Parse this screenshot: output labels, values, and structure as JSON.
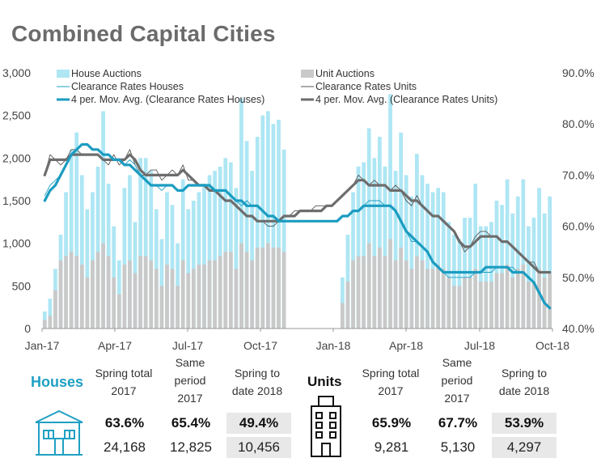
{
  "title": "Combined Capital Cities",
  "chart_data": {
    "type": "bar+line",
    "x_tick_labels": [
      "Jan-17",
      "Apr-17",
      "Jul-17",
      "Oct-17",
      "Jan-18",
      "Apr-18",
      "Jul-18",
      "Oct-18"
    ],
    "y_left": {
      "ticks": [
        "0",
        "500",
        "1,000",
        "1,500",
        "2,000",
        "2,500",
        "3,000"
      ],
      "range": [
        0,
        3000
      ]
    },
    "y_right": {
      "ticks": [
        "40.0%",
        "50.0%",
        "60.0%",
        "70.0%",
        "80.0%",
        "90.0%"
      ],
      "range": [
        40,
        90
      ]
    },
    "legend": {
      "house_auctions": "House Auctions",
      "clearance_houses": "Clearance Rates Houses",
      "mavg_houses": "4 per. Mov. Avg. (Clearance Rates Houses)",
      "unit_auctions": "Unit Auctions",
      "clearance_units": "Clearance Rates Units",
      "mavg_units": "4 per. Mov. Avg. (Clearance Rates Units)"
    },
    "colors": {
      "house_auctions": "#aee6f4",
      "clearance_houses": "#1fa0c3",
      "mavg_houses": "#1b9cc1",
      "unit_auctions": "#c9c9c9",
      "clearance_units": "#555555",
      "mavg_units": "#6d6d6d"
    },
    "house_auctions": [
      200,
      350,
      700,
      1100,
      1600,
      2100,
      2300,
      1800,
      1400,
      1600,
      1900,
      2550,
      1700,
      1200,
      800,
      1650,
      1800,
      1250,
      2000,
      2000,
      1850,
      1400,
      1050,
      1600,
      1450,
      1000,
      1750,
      1400,
      1500,
      1600,
      1700,
      1800,
      1850,
      1900,
      2000,
      1950,
      1650,
      2700,
      2200,
      1850,
      2250,
      2500,
      2550,
      2400,
      2450,
      2100,
      0,
      0,
      0,
      0,
      0,
      0,
      0,
      0,
      0,
      0,
      600,
      1100,
      1600,
      1900,
      1950,
      2350,
      2000,
      2250,
      1900,
      2750,
      1850,
      2300,
      1800,
      1550,
      2050,
      1800,
      1700,
      1600,
      1650,
      1600,
      1250,
      1100,
      1050,
      1300,
      1300,
      1700,
      1200,
      1200,
      1250,
      1500,
      1450,
      1750,
      1350,
      1550,
      1750,
      1200,
      1300,
      1650,
      1350,
      1550
    ],
    "unit_auctions": [
      100,
      150,
      450,
      800,
      850,
      900,
      850,
      750,
      600,
      800,
      900,
      1000,
      850,
      600,
      400,
      750,
      800,
      650,
      850,
      850,
      800,
      700,
      500,
      750,
      700,
      500,
      800,
      650,
      700,
      750,
      750,
      800,
      800,
      850,
      900,
      900,
      700,
      1000,
      900,
      800,
      950,
      950,
      1000,
      950,
      950,
      900,
      0,
      0,
      0,
      0,
      0,
      0,
      0,
      0,
      0,
      0,
      300,
      550,
      800,
      850,
      850,
      1000,
      850,
      950,
      850,
      1050,
      800,
      950,
      800,
      700,
      850,
      800,
      700,
      700,
      750,
      700,
      600,
      500,
      500,
      600,
      600,
      700,
      550,
      550,
      550,
      650,
      650,
      750,
      600,
      700,
      750,
      550,
      550,
      700,
      600,
      650
    ],
    "clearance_houses_pct": [
      66,
      68,
      69,
      70,
      72,
      74,
      75,
      76,
      76,
      75,
      75,
      74,
      74,
      73,
      73,
      72,
      73,
      72,
      70,
      69,
      68,
      68,
      67,
      68,
      68,
      67,
      67,
      68,
      68,
      68,
      68,
      68,
      67,
      67,
      67,
      66,
      65,
      64,
      65,
      64,
      64,
      63,
      62,
      62,
      61,
      61,
      61,
      61,
      61,
      61,
      61,
      61,
      61,
      61,
      61,
      61,
      62,
      62,
      63,
      63,
      64,
      65,
      65,
      65,
      64,
      64,
      63,
      61,
      59,
      57,
      57,
      56,
      55,
      53,
      52,
      51,
      50,
      50,
      50,
      50,
      50,
      51,
      51,
      51,
      51,
      52,
      52,
      52,
      52,
      51,
      51,
      50,
      49,
      47,
      45,
      44
    ],
    "mavg_houses_pct": [
      65,
      67,
      68,
      70,
      72,
      74,
      75,
      76,
      76,
      75,
      75,
      74,
      74,
      73,
      73,
      72,
      72,
      71,
      70,
      69,
      68,
      68,
      68,
      68,
      68,
      67,
      67,
      68,
      68,
      68,
      68,
      68,
      67,
      67,
      67,
      66,
      65,
      65,
      64,
      64,
      64,
      63,
      62,
      62,
      61,
      61,
      61,
      61,
      61,
      61,
      61,
      61,
      61,
      61,
      61,
      61,
      62,
      62,
      63,
      63,
      64,
      64,
      64,
      64,
      64,
      64,
      63,
      61,
      59,
      58,
      57,
      56,
      55,
      53,
      52,
      51,
      51,
      51,
      51,
      51,
      51,
      51,
      51,
      52,
      52,
      52,
      52,
      52,
      51,
      51,
      51,
      50,
      49,
      47,
      45,
      44
    ],
    "clearance_units_pct": [
      70,
      74,
      73,
      72,
      73,
      75,
      75,
      74,
      74,
      74,
      74,
      73,
      72,
      74,
      72,
      73,
      75,
      72,
      70,
      70,
      71,
      71,
      69,
      70,
      71,
      70,
      72,
      69,
      69,
      68,
      68,
      67,
      67,
      66,
      65,
      65,
      64,
      63,
      62,
      62,
      61,
      61,
      60,
      60,
      61,
      62,
      62,
      63,
      63,
      63,
      63,
      64,
      64,
      64,
      64,
      65,
      66,
      67,
      68,
      70,
      69,
      68,
      69,
      68,
      68,
      67,
      68,
      67,
      65,
      64,
      66,
      64,
      63,
      62,
      62,
      61,
      60,
      59,
      57,
      55,
      56,
      58,
      59,
      59,
      58,
      58,
      57,
      57,
      56,
      55,
      54,
      53,
      53,
      51,
      51,
      51
    ],
    "mavg_units_pct": [
      70,
      73,
      73,
      73,
      73,
      74,
      74,
      74,
      74,
      74,
      74,
      73,
      73,
      73,
      73,
      73,
      74,
      73,
      71,
      70,
      70,
      70,
      70,
      70,
      70,
      70,
      71,
      70,
      69,
      68,
      68,
      67,
      67,
      66,
      65,
      65,
      64,
      63,
      62,
      62,
      61,
      61,
      61,
      61,
      61,
      62,
      62,
      62,
      63,
      63,
      63,
      63,
      63,
      64,
      64,
      65,
      66,
      67,
      68,
      69,
      69,
      68,
      68,
      68,
      68,
      67,
      67,
      67,
      66,
      65,
      65,
      64,
      63,
      62,
      62,
      61,
      60,
      59,
      57,
      56,
      56,
      57,
      58,
      58,
      58,
      58,
      57,
      57,
      56,
      55,
      54,
      53,
      52,
      51,
      51,
      51
    ]
  },
  "table": {
    "houses_label": "Houses",
    "units_label": "Units",
    "headers": [
      "Spring total 2017",
      "Same period 2017",
      "Spring to date 2018"
    ],
    "houses_pct": [
      "63.6%",
      "65.4%",
      "49.4%"
    ],
    "houses_num": [
      "24,168",
      "12,825",
      "10,456"
    ],
    "units_pct": [
      "65.9%",
      "67.7%",
      "53.9%"
    ],
    "units_num": [
      "9,281",
      "5,130",
      "4,297"
    ]
  }
}
